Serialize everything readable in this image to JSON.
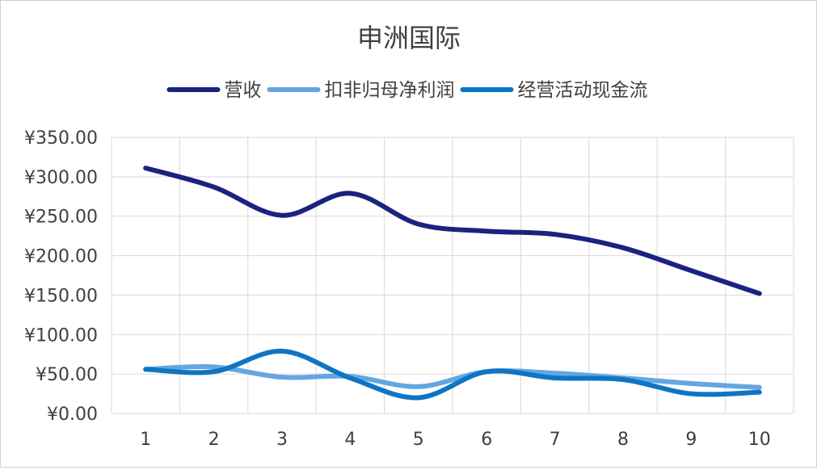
{
  "chart_data": {
    "type": "line",
    "title": "申洲国际",
    "xlabel": "",
    "ylabel": "",
    "categories": [
      "1",
      "2",
      "3",
      "4",
      "5",
      "6",
      "7",
      "8",
      "9",
      "10"
    ],
    "y_tick_labels": [
      "¥0.00",
      "¥50.00",
      "¥100.00",
      "¥150.00",
      "¥200.00",
      "¥250.00",
      "¥300.00",
      "¥350.00"
    ],
    "ylim": [
      0,
      350
    ],
    "y_step": 50,
    "grid": true,
    "smooth": true,
    "legend_position": "top",
    "series": [
      {
        "name": "营收",
        "color": "#1a237e",
        "values": [
          311,
          287,
          251,
          279,
          240,
          231,
          227,
          210,
          181,
          152
        ]
      },
      {
        "name": "扣非归母净利润",
        "color": "#64a6e0",
        "values": [
          56,
          59,
          46,
          47,
          34,
          53,
          51,
          45,
          38,
          33
        ]
      },
      {
        "name": "经营活动现金流",
        "color": "#0e75c4",
        "values": [
          56,
          53,
          79,
          45,
          20,
          53,
          45,
          43,
          25,
          27
        ]
      }
    ]
  }
}
